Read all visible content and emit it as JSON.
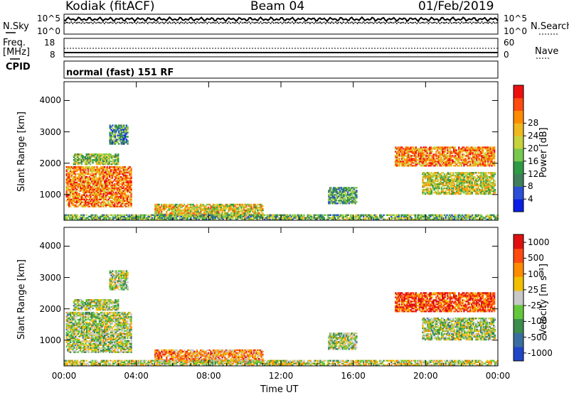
{
  "header": {
    "station": "Kodiak (fitACF)",
    "beam": "Beam 04",
    "date": "01/Feb/2019"
  },
  "status_panel": {
    "left_labels": {
      "nsky": "N.Sky",
      "freq_line1": "Freq.",
      "freq_line2": "[MHz]",
      "cpid": "CPID"
    },
    "right_labels": {
      "nsearch": "N.Search",
      "nave": "Nave"
    },
    "noise_ticks_left": [
      "10^5",
      "10^0"
    ],
    "noise_ticks_right": [
      "10^5",
      "10^0"
    ],
    "freq_ticks": [
      "18",
      "8"
    ],
    "nave_ticks": [
      "60",
      "0"
    ],
    "cpid_text": "normal (fast) 151 RF"
  },
  "chart_data": [
    {
      "type": "heatmap",
      "name": "power",
      "ylabel": "Slant Range [km]",
      "y_ticks": [
        "1000",
        "2000",
        "3000",
        "4000"
      ],
      "ylim": [
        180,
        4600
      ],
      "x_ticks": [
        "00:00",
        "04:00",
        "08:00",
        "12:00",
        "16:00",
        "20:00",
        "00:00"
      ],
      "xlim_hours": [
        0,
        24
      ],
      "colorbar": {
        "label": "Power [dB]",
        "ticks": [
          "4",
          "8",
          "12",
          "16",
          "20",
          "24",
          "28"
        ],
        "colors": [
          "#0a1ee6",
          "#2b4fd6",
          "#3f7f5a",
          "#2f9a44",
          "#78c850",
          "#c8d23a",
          "#f0b820",
          "#ff8c00",
          "#ff4a10",
          "#ee1010"
        ]
      },
      "regions": [
        {
          "t0": 0.1,
          "t1": 3.7,
          "r0": 600,
          "r1": 1900,
          "level": 0.75
        },
        {
          "t0": 0.5,
          "t1": 3.0,
          "r0": 1950,
          "r1": 2300,
          "level": 0.45
        },
        {
          "t0": 2.5,
          "t1": 3.5,
          "r0": 2600,
          "r1": 3200,
          "level": 0.3
        },
        {
          "t0": 5.0,
          "t1": 11.0,
          "r0": 300,
          "r1": 700,
          "level": 0.6
        },
        {
          "t0": 14.6,
          "t1": 16.2,
          "r0": 700,
          "r1": 1200,
          "level": 0.35
        },
        {
          "t0": 18.3,
          "t1": 23.8,
          "r0": 1900,
          "r1": 2500,
          "level": 0.75
        },
        {
          "t0": 19.8,
          "t1": 23.8,
          "r0": 1000,
          "r1": 1700,
          "level": 0.55
        },
        {
          "t0": 0.0,
          "t1": 24.0,
          "r0": 190,
          "r1": 330,
          "level": 0.4
        }
      ]
    },
    {
      "type": "heatmap",
      "name": "velocity",
      "ylabel": "Slant Range [km]",
      "y_ticks": [
        "1000",
        "2000",
        "3000",
        "4000"
      ],
      "ylim": [
        180,
        4600
      ],
      "x_ticks": [
        "00:00",
        "04:00",
        "08:00",
        "12:00",
        "16:00",
        "20:00",
        "00:00"
      ],
      "xlim_hours": [
        0,
        24
      ],
      "xlabel": "Time UT",
      "colorbar": {
        "label": "Velocity [m s⁻¹]",
        "ticks": [
          "1000",
          "500",
          "100",
          "25",
          "-25",
          "-100",
          "-500",
          "-1000"
        ],
        "colors": [
          "#2046c8",
          "#3a6ea0",
          "#3c8c4c",
          "#64c83c",
          "#c8c8c8",
          "#f0c000",
          "#ff8c00",
          "#ff4a10",
          "#e01010"
        ]
      },
      "regions": [
        {
          "t0": 0.1,
          "t1": 3.7,
          "r0": 600,
          "r1": 1900,
          "level": 0.45
        },
        {
          "t0": 0.5,
          "t1": 3.0,
          "r0": 1950,
          "r1": 2300,
          "level": 0.45
        },
        {
          "t0": 2.5,
          "t1": 3.5,
          "r0": 2600,
          "r1": 3200,
          "level": 0.45
        },
        {
          "t0": 5.0,
          "t1": 11.0,
          "r0": 300,
          "r1": 700,
          "level": 0.7
        },
        {
          "t0": 14.6,
          "t1": 16.2,
          "r0": 700,
          "r1": 1200,
          "level": 0.45
        },
        {
          "t0": 18.3,
          "t1": 23.8,
          "r0": 1900,
          "r1": 2500,
          "level": 0.85
        },
        {
          "t0": 19.8,
          "t1": 23.8,
          "r0": 1000,
          "r1": 1700,
          "level": 0.45
        },
        {
          "t0": 0.0,
          "t1": 24.0,
          "r0": 190,
          "r1": 330,
          "level": 0.5
        }
      ]
    }
  ]
}
